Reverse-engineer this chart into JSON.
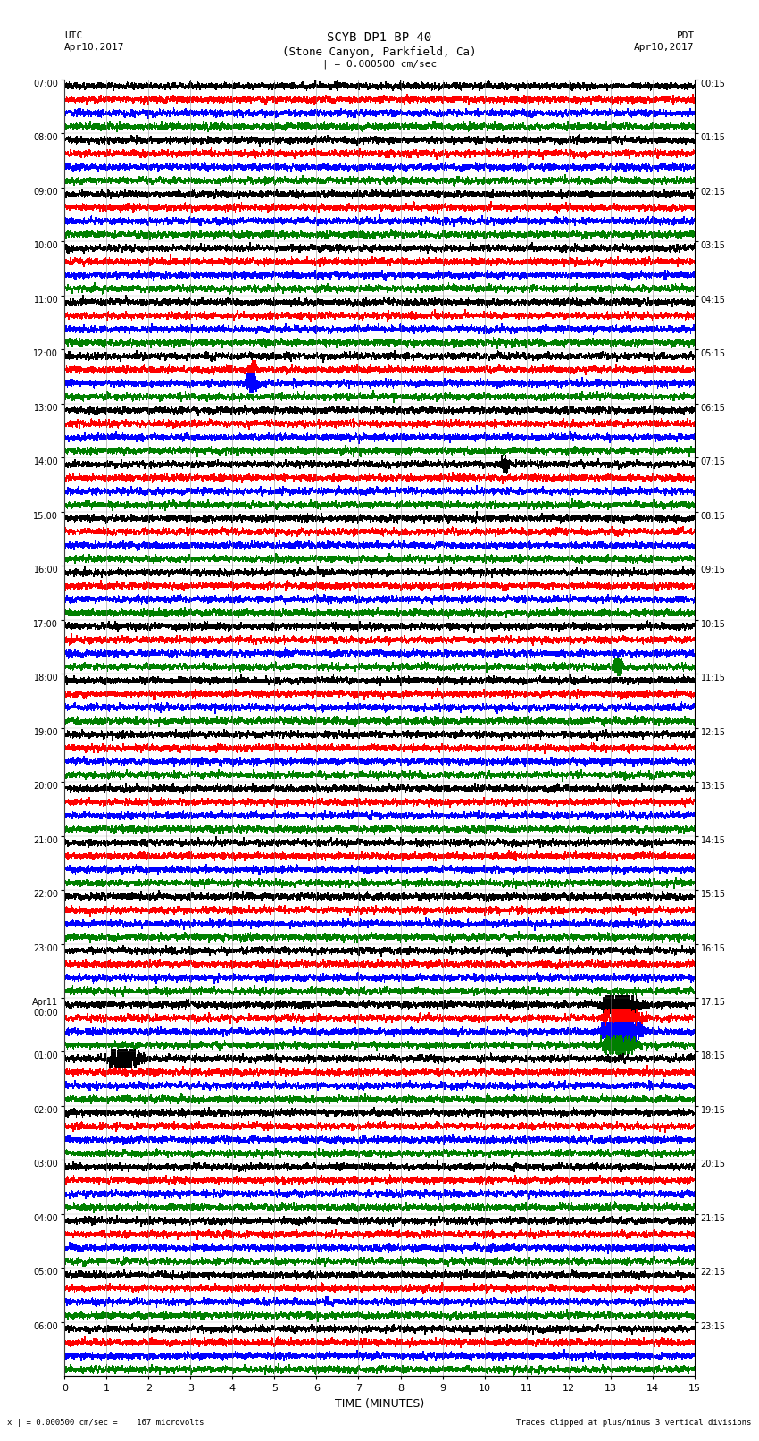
{
  "title_line1": "SCYB DP1 BP 40",
  "title_line2": "(Stone Canyon, Parkfield, Ca)",
  "scale_text": "| = 0.000500 cm/sec",
  "utc_label": "UTC",
  "utc_date": "Apr10,2017",
  "pdt_label": "PDT",
  "pdt_date": "Apr10,2017",
  "xlabel": "TIME (MINUTES)",
  "bottom_left": "x | = 0.000500 cm/sec =    167 microvolts",
  "bottom_right": "Traces clipped at plus/minus 3 vertical divisions",
  "left_times": [
    "07:00",
    "08:00",
    "09:00",
    "10:00",
    "11:00",
    "12:00",
    "13:00",
    "14:00",
    "15:00",
    "16:00",
    "17:00",
    "18:00",
    "19:00",
    "20:00",
    "21:00",
    "22:00",
    "23:00",
    "Apr11\n00:00",
    "01:00",
    "02:00",
    "03:00",
    "04:00",
    "05:00",
    "06:00"
  ],
  "right_times": [
    "00:15",
    "01:15",
    "02:15",
    "03:15",
    "04:15",
    "05:15",
    "06:15",
    "07:15",
    "08:15",
    "09:15",
    "10:15",
    "11:15",
    "12:15",
    "13:15",
    "14:15",
    "15:15",
    "16:15",
    "17:15",
    "18:15",
    "19:15",
    "20:15",
    "21:15",
    "22:15",
    "23:15"
  ],
  "trace_colors": [
    "black",
    "red",
    "blue",
    "green"
  ],
  "n_hour_groups": 24,
  "n_traces_per_group": 4,
  "n_minutes": 15,
  "background_color": "white",
  "grid_color": "#888888",
  "trace_linewidth": 0.5,
  "fig_width": 8.5,
  "fig_height": 16.13,
  "dpi": 100,
  "small_event_group": 5,
  "small_event_minute": 4.5,
  "small_event_color_idx": 2,
  "small_event2_group": 5,
  "small_event2_minute": 4.5,
  "small_event2_color_idx": 1,
  "large_event_group": 17,
  "large_event_minute": 13.3,
  "scatter_event1_group": 7,
  "scatter_event1_minute": 10.5,
  "scatter_event1_color_idx": 0,
  "scatter_event2_group": 10,
  "scatter_event2_minute": 13.2,
  "scatter_event2_color_idx": 3
}
